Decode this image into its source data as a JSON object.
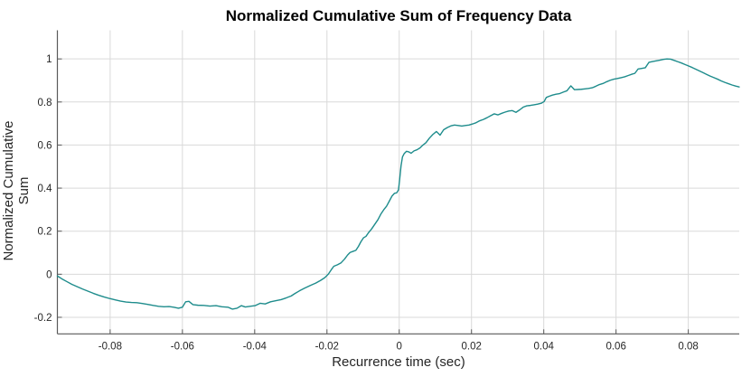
{
  "chart_data": {
    "type": "line",
    "title": "Normalized Cumulative Sum of Frequency Data",
    "xlabel": "Recurrence time (sec)",
    "ylabel": "Normalized Cumulative Sum",
    "xlim": [
      -0.0946,
      0.0941
    ],
    "ylim": [
      -0.277,
      1.133
    ],
    "grid": true,
    "legend_position": "none",
    "xticks": [
      -0.08,
      -0.06,
      -0.04,
      -0.02,
      0,
      0.02,
      0.04,
      0.06,
      0.08
    ],
    "xtick_labels": [
      "-0.08",
      "-0.06",
      "-0.04",
      "-0.02",
      "0",
      "0.02",
      "0.04",
      "0.06",
      "0.08"
    ],
    "yticks": [
      -0.2,
      0,
      0.2,
      0.4,
      0.6,
      0.8,
      1
    ],
    "ytick_labels": [
      "-0.2",
      "0",
      "0.2",
      "0.4",
      "0.6",
      "0.8",
      "1"
    ],
    "series": [
      {
        "name": "normalized-cumulative-sum",
        "color": "#1e8c8c",
        "points": [
          [
            -0.0946,
            -0.008
          ],
          [
            -0.0934,
            -0.021
          ],
          [
            -0.092,
            -0.034
          ],
          [
            -0.0906,
            -0.047
          ],
          [
            -0.0891,
            -0.058
          ],
          [
            -0.0876,
            -0.069
          ],
          [
            -0.0861,
            -0.079
          ],
          [
            -0.0846,
            -0.089
          ],
          [
            -0.0831,
            -0.098
          ],
          [
            -0.0816,
            -0.106
          ],
          [
            -0.0801,
            -0.113
          ],
          [
            -0.0786,
            -0.119
          ],
          [
            -0.0771,
            -0.125
          ],
          [
            -0.0756,
            -0.129
          ],
          [
            -0.0741,
            -0.131
          ],
          [
            -0.0726,
            -0.132
          ],
          [
            -0.0711,
            -0.136
          ],
          [
            -0.0696,
            -0.14
          ],
          [
            -0.0681,
            -0.145
          ],
          [
            -0.0666,
            -0.149
          ],
          [
            -0.0651,
            -0.151
          ],
          [
            -0.0637,
            -0.15
          ],
          [
            -0.0624,
            -0.153
          ],
          [
            -0.0611,
            -0.158
          ],
          [
            -0.06,
            -0.153
          ],
          [
            -0.0591,
            -0.128
          ],
          [
            -0.0582,
            -0.126
          ],
          [
            -0.0571,
            -0.141
          ],
          [
            -0.0557,
            -0.144
          ],
          [
            -0.0541,
            -0.145
          ],
          [
            -0.0524,
            -0.148
          ],
          [
            -0.0507,
            -0.146
          ],
          [
            -0.0491,
            -0.151
          ],
          [
            -0.0474,
            -0.153
          ],
          [
            -0.0462,
            -0.162
          ],
          [
            -0.0449,
            -0.158
          ],
          [
            -0.0437,
            -0.146
          ],
          [
            -0.0426,
            -0.152
          ],
          [
            -0.0413,
            -0.149
          ],
          [
            -0.0399,
            -0.146
          ],
          [
            -0.0385,
            -0.135
          ],
          [
            -0.0371,
            -0.138
          ],
          [
            -0.0356,
            -0.128
          ],
          [
            -0.0341,
            -0.123
          ],
          [
            -0.0327,
            -0.118
          ],
          [
            -0.0313,
            -0.11
          ],
          [
            -0.0299,
            -0.101
          ],
          [
            -0.0289,
            -0.09
          ],
          [
            -0.0276,
            -0.077
          ],
          [
            -0.0262,
            -0.065
          ],
          [
            -0.0246,
            -0.052
          ],
          [
            -0.0231,
            -0.041
          ],
          [
            -0.0218,
            -0.029
          ],
          [
            -0.0206,
            -0.016
          ],
          [
            -0.0196,
            0.001
          ],
          [
            -0.0188,
            0.021
          ],
          [
            -0.0181,
            0.037
          ],
          [
            -0.0171,
            0.044
          ],
          [
            -0.0161,
            0.053
          ],
          [
            -0.0151,
            0.071
          ],
          [
            -0.0143,
            0.089
          ],
          [
            -0.0136,
            0.101
          ],
          [
            -0.0128,
            0.106
          ],
          [
            -0.012,
            0.111
          ],
          [
            -0.0113,
            0.129
          ],
          [
            -0.0106,
            0.151
          ],
          [
            -0.0099,
            0.169
          ],
          [
            -0.0092,
            0.176
          ],
          [
            -0.0085,
            0.193
          ],
          [
            -0.0077,
            0.209
          ],
          [
            -0.0068,
            0.231
          ],
          [
            -0.0059,
            0.253
          ],
          [
            -0.0051,
            0.279
          ],
          [
            -0.0043,
            0.299
          ],
          [
            -0.0035,
            0.316
          ],
          [
            -0.0027,
            0.341
          ],
          [
            -0.002,
            0.363
          ],
          [
            -0.0013,
            0.376
          ],
          [
            -0.0007,
            0.378
          ],
          [
            -0.0002,
            0.392
          ],
          [
            0.0001,
            0.437
          ],
          [
            0.0005,
            0.503
          ],
          [
            0.0009,
            0.545
          ],
          [
            0.0014,
            0.561
          ],
          [
            0.002,
            0.571
          ],
          [
            0.0027,
            0.568
          ],
          [
            0.0033,
            0.562
          ],
          [
            0.0041,
            0.573
          ],
          [
            0.0049,
            0.578
          ],
          [
            0.0057,
            0.586
          ],
          [
            0.0065,
            0.599
          ],
          [
            0.0074,
            0.611
          ],
          [
            0.0083,
            0.631
          ],
          [
            0.0093,
            0.649
          ],
          [
            0.0103,
            0.663
          ],
          [
            0.0113,
            0.646
          ],
          [
            0.0123,
            0.671
          ],
          [
            0.0133,
            0.681
          ],
          [
            0.0143,
            0.689
          ],
          [
            0.0153,
            0.693
          ],
          [
            0.0163,
            0.691
          ],
          [
            0.0173,
            0.688
          ],
          [
            0.0183,
            0.691
          ],
          [
            0.0193,
            0.693
          ],
          [
            0.0203,
            0.698
          ],
          [
            0.0213,
            0.704
          ],
          [
            0.0223,
            0.713
          ],
          [
            0.0233,
            0.719
          ],
          [
            0.0243,
            0.727
          ],
          [
            0.0253,
            0.736
          ],
          [
            0.0263,
            0.745
          ],
          [
            0.0273,
            0.74
          ],
          [
            0.0283,
            0.747
          ],
          [
            0.0293,
            0.753
          ],
          [
            0.0303,
            0.758
          ],
          [
            0.0313,
            0.76
          ],
          [
            0.0323,
            0.752
          ],
          [
            0.0333,
            0.763
          ],
          [
            0.0343,
            0.776
          ],
          [
            0.0353,
            0.782
          ],
          [
            0.0363,
            0.784
          ],
          [
            0.0373,
            0.787
          ],
          [
            0.0383,
            0.79
          ],
          [
            0.0393,
            0.794
          ],
          [
            0.0401,
            0.802
          ],
          [
            0.0407,
            0.821
          ],
          [
            0.0414,
            0.826
          ],
          [
            0.0424,
            0.832
          ],
          [
            0.0434,
            0.836
          ],
          [
            0.0444,
            0.839
          ],
          [
            0.0454,
            0.846
          ],
          [
            0.0464,
            0.852
          ],
          [
            0.0475,
            0.875
          ],
          [
            0.0485,
            0.857
          ],
          [
            0.0494,
            0.858
          ],
          [
            0.0504,
            0.859
          ],
          [
            0.0514,
            0.861
          ],
          [
            0.0524,
            0.863
          ],
          [
            0.0534,
            0.866
          ],
          [
            0.0544,
            0.873
          ],
          [
            0.0554,
            0.881
          ],
          [
            0.0564,
            0.886
          ],
          [
            0.0574,
            0.894
          ],
          [
            0.0584,
            0.901
          ],
          [
            0.0594,
            0.906
          ],
          [
            0.0604,
            0.909
          ],
          [
            0.0614,
            0.913
          ],
          [
            0.0624,
            0.917
          ],
          [
            0.0634,
            0.923
          ],
          [
            0.0644,
            0.929
          ],
          [
            0.0652,
            0.933
          ],
          [
            0.0661,
            0.953
          ],
          [
            0.0671,
            0.956
          ],
          [
            0.0681,
            0.959
          ],
          [
            0.0691,
            0.984
          ],
          [
            0.0701,
            0.988
          ],
          [
            0.0711,
            0.991
          ],
          [
            0.0721,
            0.994
          ],
          [
            0.0731,
            0.998
          ],
          [
            0.0741,
            1.0
          ],
          [
            0.0751,
            0.999
          ],
          [
            0.0761,
            0.993
          ],
          [
            0.0771,
            0.987
          ],
          [
            0.0781,
            0.981
          ],
          [
            0.0791,
            0.974
          ],
          [
            0.0801,
            0.967
          ],
          [
            0.0811,
            0.96
          ],
          [
            0.0821,
            0.952
          ],
          [
            0.0831,
            0.944
          ],
          [
            0.0841,
            0.936
          ],
          [
            0.0851,
            0.928
          ],
          [
            0.0861,
            0.92
          ],
          [
            0.0871,
            0.913
          ],
          [
            0.0881,
            0.906
          ],
          [
            0.0891,
            0.898
          ],
          [
            0.0901,
            0.891
          ],
          [
            0.0911,
            0.885
          ],
          [
            0.0921,
            0.879
          ],
          [
            0.0931,
            0.874
          ],
          [
            0.0941,
            0.87
          ]
        ]
      }
    ]
  },
  "style": {
    "background_color": "#ffffff",
    "grid_color": "#d9d9d9",
    "axis_color": "#5a5a5a",
    "tick_label_color": "#262626",
    "title_color": "#000000",
    "line_width": 1.4
  }
}
